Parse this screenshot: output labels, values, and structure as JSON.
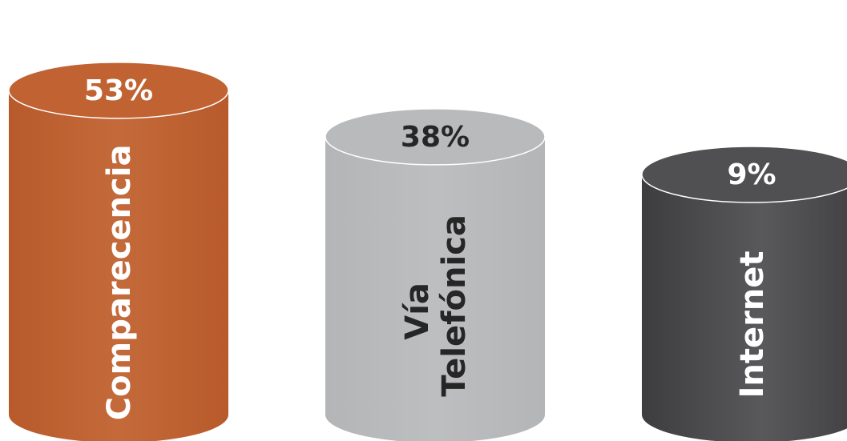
{
  "chart_data": {
    "type": "bar",
    "style": "3d-cylinder",
    "categories": [
      "Comparecencia",
      "Vía Telefónica",
      "Internet"
    ],
    "category_lines": [
      [
        "Comparecencia"
      ],
      [
        "Vía",
        "Telefónica"
      ],
      [
        "Internet"
      ]
    ],
    "values": [
      53,
      38,
      9
    ],
    "value_labels": [
      "53%",
      "38%",
      "9%"
    ],
    "unit": "%",
    "colors": [
      "#c06232",
      "#b9babc",
      "#4c4c4e"
    ],
    "label_colors": [
      "#ffffff",
      "#262626",
      "#ffffff"
    ],
    "value_label_colors": [
      "#ffffff",
      "#262626",
      "#ffffff"
    ],
    "title": "",
    "xlabel": "",
    "ylabel": "",
    "grid": false,
    "legend": "none"
  }
}
